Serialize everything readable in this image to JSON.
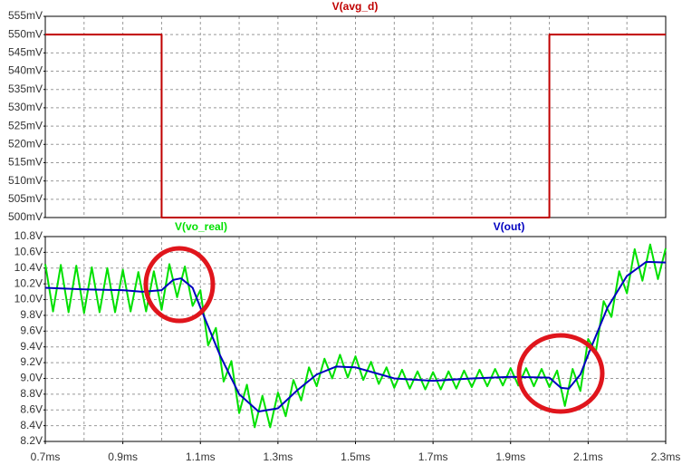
{
  "chart_data": [
    {
      "type": "line",
      "xlim": [
        0.7,
        2.3
      ],
      "ylim": [
        500,
        555
      ],
      "yticks": [
        {
          "value": 500,
          "label": "500mV"
        },
        {
          "value": 505,
          "label": "505mV"
        },
        {
          "value": 510,
          "label": "510mV"
        },
        {
          "value": 515,
          "label": "515mV"
        },
        {
          "value": 520,
          "label": "520mV"
        },
        {
          "value": 525,
          "label": "525mV"
        },
        {
          "value": 530,
          "label": "530mV"
        },
        {
          "value": 535,
          "label": "535mV"
        },
        {
          "value": 540,
          "label": "540mV"
        },
        {
          "value": 545,
          "label": "545mV"
        },
        {
          "value": 550,
          "label": "550mV"
        },
        {
          "value": 555,
          "label": "555mV"
        }
      ],
      "grid": true,
      "series": [
        {
          "name": "V(avg_d)",
          "color": "#c00000",
          "x": [
            0.7,
            1.0,
            1.0,
            2.0,
            2.0,
            2.3
          ],
          "values": [
            550,
            550,
            500,
            500,
            550,
            550
          ]
        }
      ]
    },
    {
      "type": "line",
      "xlim": [
        0.7,
        2.3
      ],
      "xticks": [
        {
          "value": 0.7,
          "label": "0.7ms"
        },
        {
          "value": 0.9,
          "label": "0.9ms"
        },
        {
          "value": 1.1,
          "label": "1.1ms"
        },
        {
          "value": 1.3,
          "label": "1.3ms"
        },
        {
          "value": 1.5,
          "label": "1.5ms"
        },
        {
          "value": 1.7,
          "label": "1.7ms"
        },
        {
          "value": 1.9,
          "label": "1.9ms"
        },
        {
          "value": 2.1,
          "label": "2.1ms"
        },
        {
          "value": 2.3,
          "label": "2.3ms"
        }
      ],
      "ylim": [
        8.2,
        10.8
      ],
      "yticks": [
        {
          "value": 8.2,
          "label": "8.2V"
        },
        {
          "value": 8.4,
          "label": "8.4V"
        },
        {
          "value": 8.6,
          "label": "8.6V"
        },
        {
          "value": 8.8,
          "label": "8.8V"
        },
        {
          "value": 9.0,
          "label": "9.0V"
        },
        {
          "value": 9.2,
          "label": "9.2V"
        },
        {
          "value": 9.4,
          "label": "9.4V"
        },
        {
          "value": 9.6,
          "label": "9.6V"
        },
        {
          "value": 9.8,
          "label": "9.8V"
        },
        {
          "value": 10.0,
          "label": "10.0V"
        },
        {
          "value": 10.2,
          "label": "10.2V"
        },
        {
          "value": 10.4,
          "label": "10.4V"
        },
        {
          "value": 10.6,
          "label": "10.6V"
        },
        {
          "value": 10.8,
          "label": "10.8V"
        }
      ],
      "grid": true,
      "series": [
        {
          "name": "V(vo_real)",
          "color": "#00e000",
          "x": [
            0.7,
            0.72,
            0.74,
            0.76,
            0.78,
            0.8,
            0.82,
            0.84,
            0.86,
            0.88,
            0.9,
            0.92,
            0.94,
            0.96,
            0.98,
            1.0,
            1.02,
            1.04,
            1.06,
            1.08,
            1.1,
            1.12,
            1.14,
            1.16,
            1.18,
            1.2,
            1.22,
            1.24,
            1.26,
            1.28,
            1.3,
            1.32,
            1.34,
            1.36,
            1.38,
            1.4,
            1.42,
            1.44,
            1.46,
            1.48,
            1.5,
            1.52,
            1.54,
            1.56,
            1.58,
            1.6,
            1.62,
            1.64,
            1.66,
            1.68,
            1.7,
            1.72,
            1.74,
            1.76,
            1.78,
            1.8,
            1.82,
            1.84,
            1.86,
            1.88,
            1.9,
            1.92,
            1.94,
            1.96,
            1.98,
            2.0,
            2.02,
            2.04,
            2.06,
            2.08,
            2.1,
            2.12,
            2.14,
            2.16,
            2.18,
            2.2,
            2.22,
            2.24,
            2.26,
            2.28,
            2.3
          ],
          "values": [
            10.45,
            9.85,
            10.44,
            9.84,
            10.43,
            9.83,
            10.41,
            9.84,
            10.4,
            9.84,
            10.38,
            9.85,
            10.35,
            9.85,
            10.36,
            9.87,
            10.45,
            10.03,
            10.42,
            9.92,
            10.12,
            9.42,
            9.64,
            8.96,
            9.22,
            8.56,
            8.92,
            8.38,
            8.78,
            8.38,
            8.82,
            8.52,
            8.98,
            8.72,
            9.14,
            8.9,
            9.25,
            9.0,
            9.3,
            9.01,
            9.28,
            8.98,
            9.21,
            8.93,
            9.14,
            8.88,
            9.11,
            8.87,
            9.09,
            8.86,
            9.08,
            8.86,
            9.09,
            8.87,
            9.1,
            8.89,
            9.11,
            8.9,
            9.12,
            8.91,
            9.13,
            8.91,
            9.13,
            8.9,
            9.12,
            8.89,
            9.1,
            8.65,
            9.12,
            8.84,
            9.5,
            9.34,
            9.98,
            9.78,
            10.36,
            10.08,
            10.64,
            10.24,
            10.7,
            10.26,
            10.65
          ]
        },
        {
          "name": "V(out)",
          "color": "#0000c0",
          "x": [
            0.7,
            0.8,
            0.9,
            0.95,
            1.0,
            1.03,
            1.05,
            1.08,
            1.1,
            1.15,
            1.2,
            1.25,
            1.3,
            1.35,
            1.4,
            1.45,
            1.5,
            1.55,
            1.6,
            1.7,
            1.8,
            1.9,
            2.0,
            2.03,
            2.05,
            2.08,
            2.1,
            2.15,
            2.2,
            2.25,
            2.3
          ],
          "values": [
            10.15,
            10.13,
            10.12,
            10.1,
            10.12,
            10.25,
            10.27,
            10.15,
            9.9,
            9.3,
            8.8,
            8.58,
            8.62,
            8.85,
            9.05,
            9.15,
            9.14,
            9.07,
            9.0,
            8.97,
            9.0,
            9.02,
            9.01,
            8.88,
            8.87,
            9.05,
            9.3,
            9.9,
            10.3,
            10.48,
            10.47
          ]
        }
      ]
    }
  ]
}
